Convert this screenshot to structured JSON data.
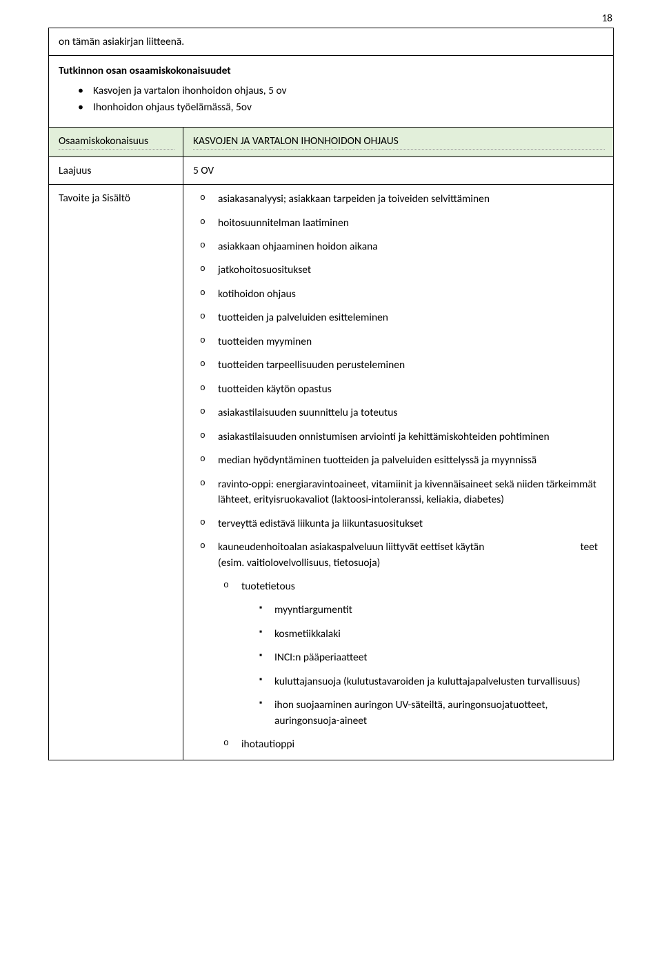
{
  "page_number": "18",
  "intro_line": "on tämän asiakirjan liitteenä.",
  "section2": {
    "title": "Tutkinnon osan osaamiskokonaisuudet",
    "items": [
      "Kasvojen ja vartalon ihonhoidon ohjaus, 5 ov",
      "Ihonhoidon ohjaus työelämässä, 5ov"
    ]
  },
  "grid": {
    "row1": {
      "label": "Osaamiskokonaisuus",
      "value": "KASVOJEN JA VARTALON IHONHOIDON OHJAUS"
    },
    "row2": {
      "label": "Laajuus",
      "value": "5 OV"
    },
    "row3": {
      "label": "Tavoite ja Sisältö",
      "items": [
        "asiakasanalyysi; asiakkaan tarpeiden ja toiveiden selvittäminen",
        "hoitosuunnitelman laatiminen",
        "asiakkaan ohjaaminen hoidon aikana",
        "jatkohoitosuositukset",
        "kotihoidon ohjaus",
        "tuotteiden ja palveluiden esitteleminen",
        "tuotteiden myyminen",
        "tuotteiden tarpeellisuuden perusteleminen",
        "tuotteiden käytön opastus",
        "asiakastilaisuuden suunnittelu ja toteutus",
        "asiakastilaisuuden onnistumisen arviointi ja kehittämiskohteiden pohtiminen",
        "median hyödyntäminen tuotteiden ja palveluiden esittelyssä ja myynnissä",
        "ravinto-oppi: energiaravintoaineet, vitamiinit ja kivennäisaineet sekä niiden tärkeimmät lähteet, erityisruokavaliot (laktoosi-intoleranssi, keliakia, diabetes)",
        "terveyttä edistävä liikunta ja liikuntasuositukset"
      ],
      "item_eettiset_main": "kauneudenhoitoalan asiakaspalveluun liittyvät eettiset käytän",
      "item_eettiset_right": "teet",
      "item_eettiset_sub": "(esim. vaitiolovelvollisuus, tietosuoja)",
      "item_tuotetietous": "tuotetietous",
      "sub_items": [
        "myyntiargumentit",
        "kosmetiikkalaki",
        "INCI:n pääperiaatteet",
        "kuluttajansuoja (kulutustavaroiden ja kuluttajapalvelusten turvallisuus)",
        "ihon suojaaminen auringon UV-säteiltä, auringonsuojatuotteet, auringonsuoja-aineet"
      ],
      "item_last": "ihotautioppi"
    }
  },
  "colors": {
    "green_bg": "#e2efda",
    "border": "#000000",
    "dotted": "#999999",
    "page_bg": "#ffffff"
  }
}
